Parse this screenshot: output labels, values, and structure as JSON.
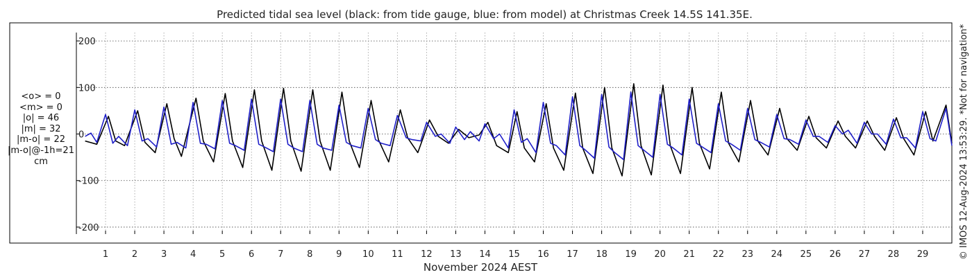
{
  "chart_data": {
    "type": "line",
    "title": "Predicted tidal sea level (black: from tide gauge, blue: from model) at Christmas Creek 14.5S 141.35E.",
    "xlabel": "November 2024 AEST",
    "ylabel": "",
    "ylim": [
      -215,
      218
    ],
    "xlim": [
      0.0,
      30.0
    ],
    "x_ticks": [
      1,
      2,
      3,
      4,
      5,
      6,
      7,
      8,
      9,
      10,
      11,
      12,
      13,
      14,
      15,
      16,
      17,
      18,
      19,
      20,
      21,
      22,
      23,
      24,
      25,
      26,
      27,
      28,
      29
    ],
    "x_tick_labels": [
      "1",
      "2",
      "3",
      "4",
      "5",
      "6",
      "7",
      "8",
      "9",
      "10",
      "11",
      "12",
      "13",
      "14",
      "15",
      "16",
      "17",
      "18",
      "19",
      "20",
      "21",
      "22",
      "23",
      "24",
      "25",
      "26",
      "27",
      "28",
      "29"
    ],
    "y_ticks": [
      -200,
      -100,
      0,
      100,
      200
    ],
    "y_tick_labels": [
      "-200",
      "-100",
      "0",
      "100",
      "200"
    ],
    "grid": true,
    "series": [
      {
        "color": "#000000",
        "x": [
          0.3,
          0.7,
          1.1,
          1.35,
          1.65,
          2.1,
          2.35,
          2.7,
          3.1,
          3.35,
          3.6,
          4.1,
          4.35,
          4.7,
          5.1,
          5.35,
          5.7,
          6.1,
          6.35,
          6.7,
          7.1,
          7.35,
          7.7,
          8.1,
          8.35,
          8.7,
          9.1,
          9.35,
          9.7,
          10.1,
          10.35,
          10.7,
          11.1,
          11.35,
          11.7,
          12.1,
          12.4,
          12.75,
          13.1,
          13.45,
          13.8,
          14.1,
          14.4,
          14.8,
          15.1,
          15.35,
          15.7,
          16.1,
          16.35,
          16.7,
          17.1,
          17.35,
          17.7,
          18.1,
          18.35,
          18.7,
          19.1,
          19.35,
          19.7,
          20.1,
          20.35,
          20.7,
          21.1,
          21.35,
          21.7,
          22.1,
          22.35,
          22.7,
          23.1,
          23.35,
          23.7,
          24.1,
          24.35,
          24.7,
          25.1,
          25.35,
          25.7,
          26.1,
          26.35,
          26.7,
          27.1,
          27.35,
          27.7,
          28.1,
          28.35,
          28.7,
          29.1,
          29.35,
          29.8,
          30.0
        ],
        "y": [
          -15,
          -22,
          38,
          -15,
          -25,
          50,
          -18,
          -40,
          65,
          -10,
          -48,
          77,
          -15,
          -60,
          87,
          -15,
          -72,
          95,
          -15,
          -78,
          98,
          -15,
          -80,
          95,
          -15,
          -78,
          90,
          -15,
          -72,
          72,
          -12,
          -60,
          52,
          -8,
          -40,
          30,
          -5,
          -20,
          10,
          -8,
          -2,
          25,
          -25,
          -40,
          48,
          -30,
          -60,
          65,
          -30,
          -78,
          88,
          -30,
          -85,
          100,
          -30,
          -90,
          108,
          -25,
          -88,
          105,
          -25,
          -85,
          100,
          -20,
          -75,
          90,
          -20,
          -60,
          72,
          -15,
          -45,
          55,
          -10,
          -35,
          38,
          -8,
          -30,
          28,
          -5,
          -30,
          28,
          -5,
          -35,
          35,
          -10,
          -45,
          48,
          -15,
          62,
          -20
        ]
      },
      {
        "color": "#1f1fc8",
        "x": [
          0.3,
          0.5,
          0.7,
          1.0,
          1.25,
          1.45,
          1.75,
          2.0,
          2.25,
          2.45,
          2.75,
          3.0,
          3.25,
          3.45,
          3.75,
          4.0,
          4.25,
          4.45,
          4.75,
          5.0,
          5.25,
          5.45,
          5.75,
          6.0,
          6.25,
          6.45,
          6.75,
          7.0,
          7.25,
          7.45,
          7.75,
          8.0,
          8.25,
          8.45,
          8.75,
          9.0,
          9.25,
          9.45,
          9.75,
          10.0,
          10.25,
          10.45,
          10.75,
          11.0,
          11.3,
          11.5,
          11.8,
          12.0,
          12.3,
          12.5,
          12.8,
          13.0,
          13.3,
          13.5,
          13.8,
          14.0,
          14.3,
          14.5,
          14.8,
          15.0,
          15.25,
          15.45,
          15.75,
          16.0,
          16.25,
          16.45,
          16.75,
          17.0,
          17.25,
          17.45,
          17.75,
          18.0,
          18.25,
          18.45,
          18.75,
          19.0,
          19.25,
          19.45,
          19.75,
          20.0,
          20.25,
          20.45,
          20.75,
          21.0,
          21.25,
          21.45,
          21.75,
          22.0,
          22.25,
          22.45,
          22.75,
          23.0,
          23.25,
          23.45,
          23.75,
          24.0,
          24.25,
          24.45,
          24.75,
          25.0,
          25.25,
          25.45,
          25.75,
          26.0,
          26.25,
          26.45,
          26.75,
          27.0,
          27.25,
          27.45,
          27.75,
          28.0,
          28.25,
          28.45,
          28.75,
          29.0,
          29.25,
          29.45,
          29.8,
          30.0
        ],
        "y": [
          -5,
          2,
          -18,
          42,
          -20,
          -5,
          -25,
          52,
          -15,
          -10,
          -28,
          58,
          -22,
          -18,
          -30,
          68,
          -20,
          -22,
          -32,
          72,
          -20,
          -25,
          -35,
          75,
          -22,
          -28,
          -38,
          75,
          -22,
          -30,
          -38,
          72,
          -22,
          -30,
          -35,
          62,
          -18,
          -25,
          -30,
          55,
          -12,
          -20,
          -25,
          40,
          -8,
          -12,
          -15,
          25,
          -5,
          0,
          -20,
          15,
          -12,
          5,
          -15,
          22,
          -10,
          0,
          -30,
          52,
          -18,
          -10,
          -40,
          68,
          -20,
          -25,
          -45,
          80,
          -25,
          -35,
          -52,
          85,
          -28,
          -40,
          -55,
          90,
          -25,
          -35,
          -50,
          85,
          -22,
          -30,
          -45,
          75,
          -20,
          -28,
          -40,
          65,
          -15,
          -22,
          -35,
          55,
          -12,
          -18,
          -28,
          42,
          -10,
          -12,
          -22,
          30,
          -5,
          -5,
          -18,
          18,
          0,
          8,
          -20,
          25,
          0,
          0,
          -22,
          32,
          -8,
          -8,
          -30,
          48,
          -10,
          -15,
          55,
          -25
        ]
      }
    ],
    "stats": {
      "mean_obs": "<o> = 0",
      "mean_model": "<m> = 0",
      "abs_obs": "|o| = 46",
      "abs_model": "|m| = 32",
      "abs_diff": "|m-o| = 22",
      "abs_diff_lag": "|m-o|@-1h=21",
      "unit": "cm"
    },
    "side_note": "© IMOS 12-Aug-2024 13:53:29. *Not for navigation*"
  }
}
